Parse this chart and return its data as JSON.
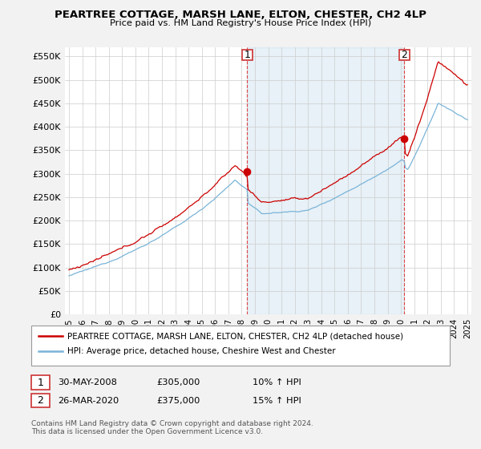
{
  "title": "PEARTREE COTTAGE, MARSH LANE, ELTON, CHESTER, CH2 4LP",
  "subtitle": "Price paid vs. HM Land Registry's House Price Index (HPI)",
  "legend_line1": "PEARTREE COTTAGE, MARSH LANE, ELTON, CHESTER, CH2 4LP (detached house)",
  "legend_line2": "HPI: Average price, detached house, Cheshire West and Chester",
  "annotation1_label": "1",
  "annotation1_date": "30-MAY-2008",
  "annotation1_price": "£305,000",
  "annotation1_hpi": "10% ↑ HPI",
  "annotation1_year": 2008.42,
  "annotation1_value": 305000,
  "annotation2_label": "2",
  "annotation2_date": "26-MAR-2020",
  "annotation2_price": "£375,000",
  "annotation2_hpi": "15% ↑ HPI",
  "annotation2_year": 2020.25,
  "annotation2_value": 375000,
  "ylim": [
    0,
    570000
  ],
  "yticks": [
    0,
    50000,
    100000,
    150000,
    200000,
    250000,
    300000,
    350000,
    400000,
    450000,
    500000,
    550000
  ],
  "xlim_start": 1994.7,
  "xlim_end": 2025.3,
  "xticks": [
    1995,
    1996,
    1997,
    1998,
    1999,
    2000,
    2001,
    2002,
    2003,
    2004,
    2005,
    2006,
    2007,
    2008,
    2009,
    2010,
    2011,
    2012,
    2013,
    2014,
    2015,
    2016,
    2017,
    2018,
    2019,
    2020,
    2021,
    2022,
    2023,
    2024,
    2025
  ],
  "hpi_color": "#7ab4d8",
  "price_color": "#cc0000",
  "bg_color": "#ffffff",
  "grid_color": "#cccccc",
  "shade_color": "#ddeeff",
  "vline_color": "#dd4444",
  "footnote": "Contains HM Land Registry data © Crown copyright and database right 2024.\nThis data is licensed under the Open Government Licence v3.0."
}
